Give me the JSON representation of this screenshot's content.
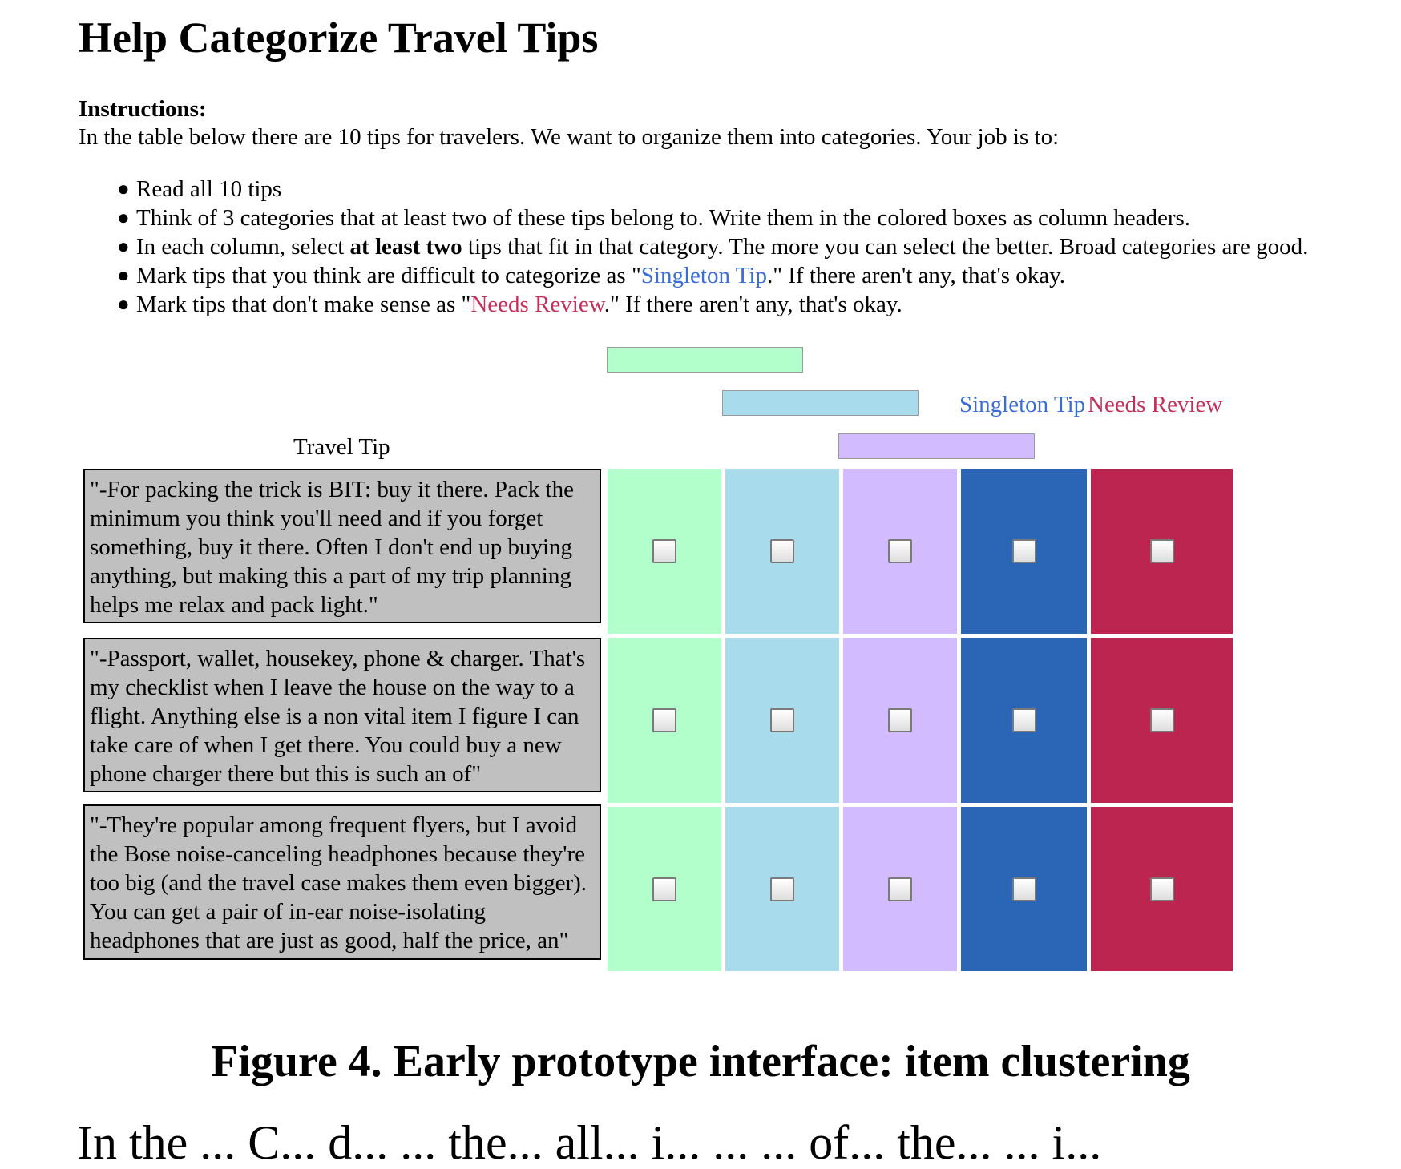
{
  "page": {
    "title": "Help Categorize Travel Tips"
  },
  "instructions": {
    "heading": "Instructions:",
    "intro": "In the table below there are 10 tips for travelers. We want to organize them into categories. Your job is to:",
    "bullets": {
      "b1": "Read all 10 tips",
      "b2": "Think of 3 categories that at least two of these tips belong to. Write them in the colored boxes as column headers.",
      "b3_pre": "In each column, select ",
      "b3_bold": "at least two",
      "b3_post": " tips that fit in that category. The more you can select the better. Broad categories are good.",
      "b4_pre": "Mark tips that you think are difficult to categorize as \"",
      "b4_kw": "Singleton Tip",
      "b4_post": ".\" If there aren't any, that's okay.",
      "b5_pre": "Mark tips that don't make sense as \"",
      "b5_kw": "Needs Review",
      "b5_post": ".\" If there aren't any, that's okay."
    }
  },
  "table": {
    "tip_column_header": "Travel Tip",
    "category_inputs": [
      "",
      "",
      ""
    ],
    "singleton_header": "Singleton Tip",
    "review_header": "Needs Review",
    "rows": [
      {
        "tip": "\"-For packing the trick is BIT: buy it there. Pack the minimum you think you'll need and if you forget something, buy it there. Often I don't end up buying anything, but making this a part of my trip planning helps me relax and pack light.\"",
        "checked": [
          false,
          false,
          false,
          false,
          false
        ]
      },
      {
        "tip": "\"-Passport, wallet, housekey, phone & charger. That's my checklist when I leave the house on the way to a flight. Anything else is a non vital item I figure I can take care of when I get there. You could buy a new phone charger there but this is such an of\"",
        "checked": [
          false,
          false,
          false,
          false,
          false
        ]
      },
      {
        "tip": "\"-They're popular among frequent flyers, but I avoid the Bose noise-canceling headphones because they're too big (and the travel case makes them even bigger). You can get a pair of in-ear noise-isolating headphones that are just as good, half the price, an\"",
        "checked": [
          false,
          false,
          false,
          false,
          false
        ]
      }
    ]
  },
  "colors": {
    "category_1": "#b3ffcc",
    "category_2": "#a8dcec",
    "category_3": "#d3bbff",
    "singleton": "#2b65b6",
    "needs_review": "#bb2550",
    "tip_cell": "#c0c0c0"
  },
  "caption": "Figure 4. Early prototype interface: item clustering",
  "cut_off_text": "In the ... C... d... ... the... all... i... ... ... of... the... ... i..."
}
